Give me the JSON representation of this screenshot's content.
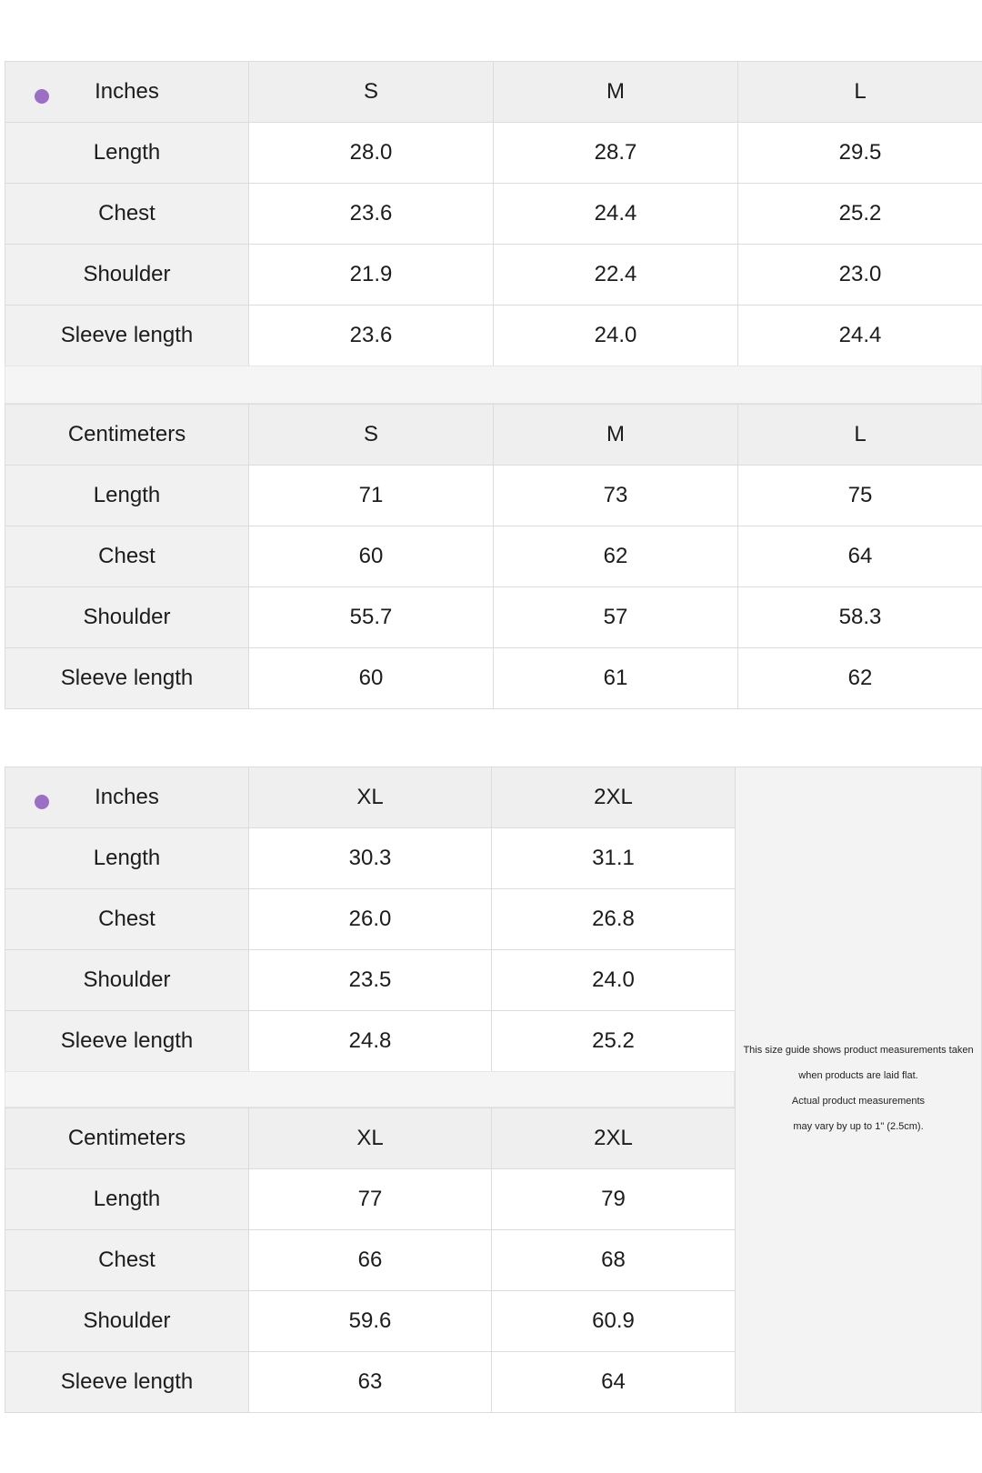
{
  "top": {
    "inches": {
      "header": [
        "Inches",
        "S",
        "M",
        "L"
      ],
      "rows": [
        [
          "Length",
          "28.0",
          "28.7",
          "29.5"
        ],
        [
          "Chest",
          "23.6",
          "24.4",
          "25.2"
        ],
        [
          "Shoulder",
          "21.9",
          "22.4",
          "23.0"
        ],
        [
          "Sleeve length",
          "23.6",
          "24.0",
          "24.4"
        ]
      ]
    },
    "centimeters": {
      "header": [
        "Centimeters",
        "S",
        "M",
        "L"
      ],
      "rows": [
        [
          "Length",
          "71",
          "73",
          "75"
        ],
        [
          "Chest",
          "60",
          "62",
          "64"
        ],
        [
          "Shoulder",
          "55.7",
          "57",
          "58.3"
        ],
        [
          "Sleeve length",
          "60",
          "61",
          "62"
        ]
      ]
    }
  },
  "bottom": {
    "inches": {
      "header": [
        "Inches",
        "XL",
        "2XL"
      ],
      "rows": [
        [
          "Length",
          "30.3",
          "31.1"
        ],
        [
          "Chest",
          "26.0",
          "26.8"
        ],
        [
          "Shoulder",
          "23.5",
          "24.0"
        ],
        [
          "Sleeve length",
          "24.8",
          "25.2"
        ]
      ]
    },
    "centimeters": {
      "header": [
        "Centimeters",
        "XL",
        "2XL"
      ],
      "rows": [
        [
          "Length",
          "77",
          "79"
        ],
        [
          "Chest",
          "66",
          "68"
        ],
        [
          "Shoulder",
          "59.6",
          "60.9"
        ],
        [
          "Sleeve length",
          "63",
          "64"
        ]
      ]
    }
  },
  "note": {
    "lines": [
      "This size guide shows product measurements taken",
      "when products are laid flat.",
      "Actual product measurements",
      "may vary by up to 1\" (2.5cm)."
    ]
  },
  "colors": {
    "bullet": "#9b6fc4",
    "header_bg": "#efefef",
    "label_bg": "#f1f1f1",
    "border": "#dcdcdc"
  }
}
